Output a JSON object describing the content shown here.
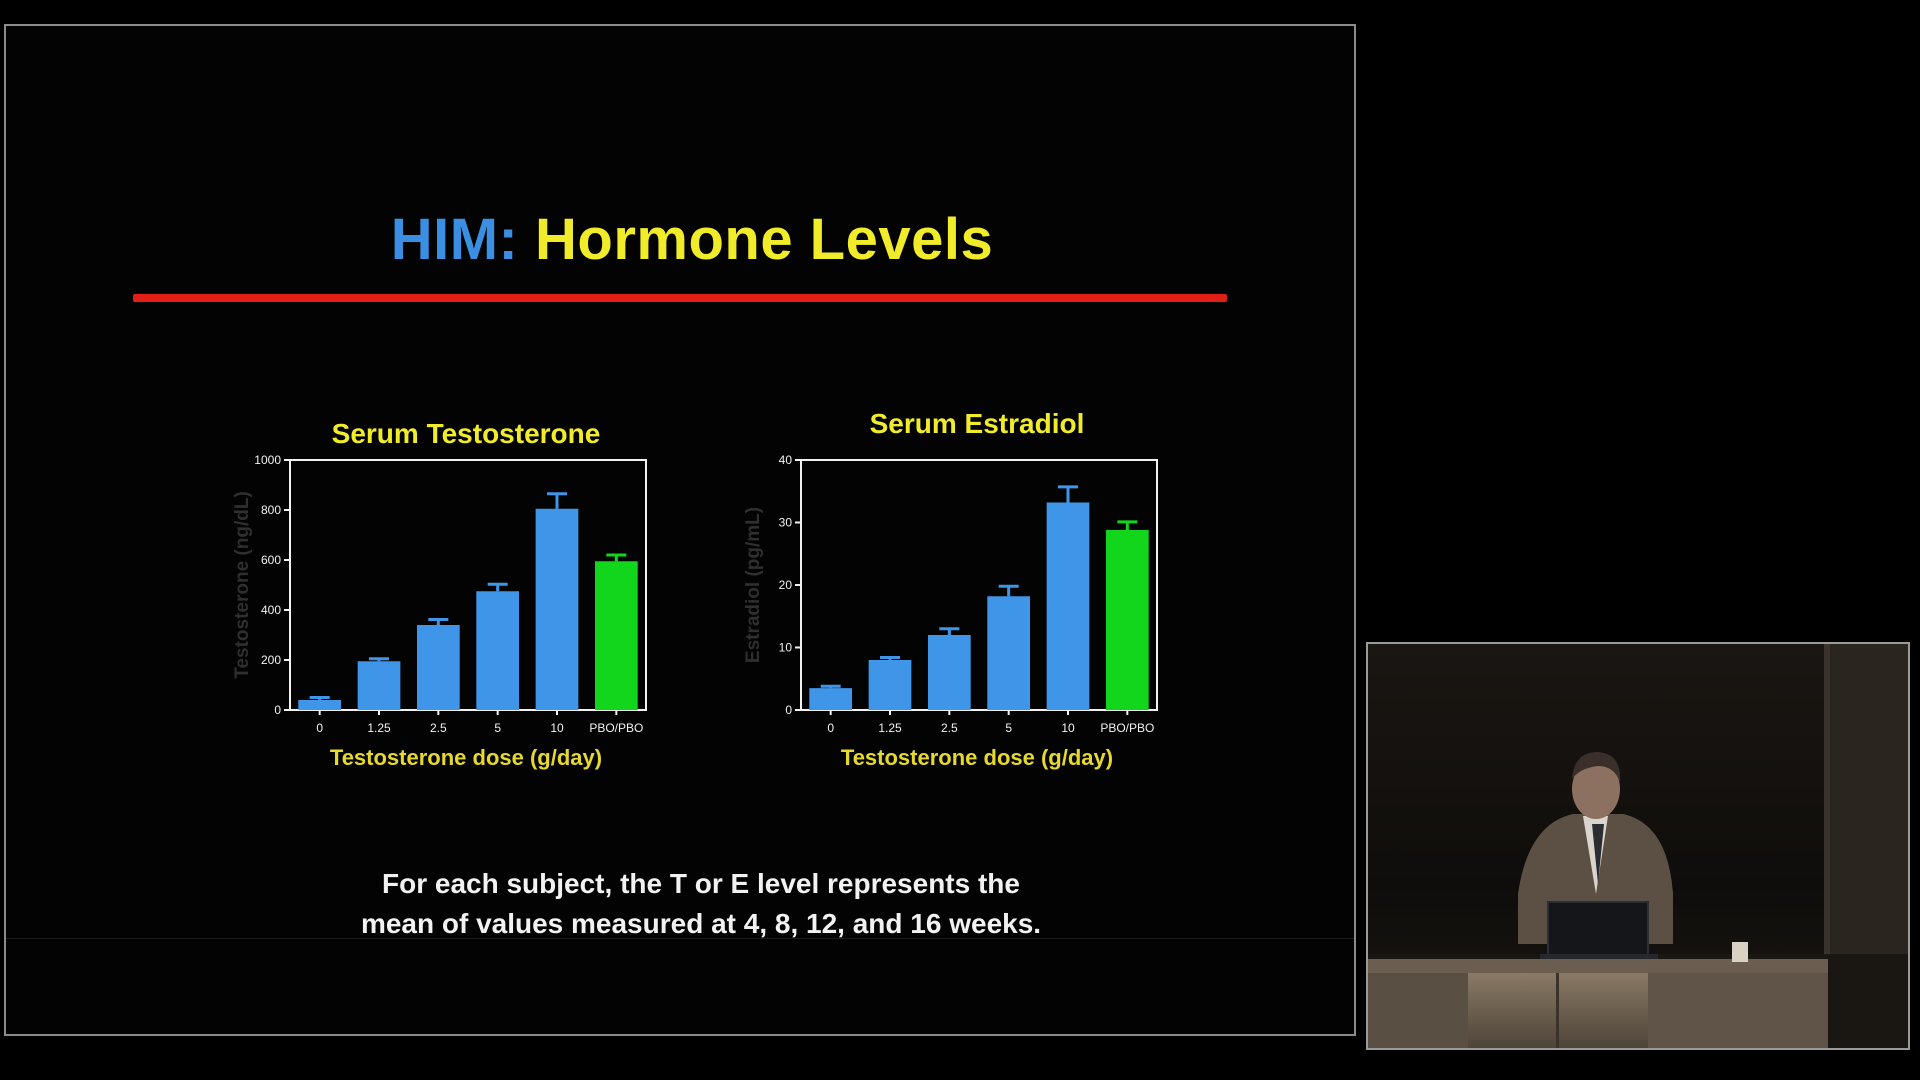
{
  "slide": {
    "title_prefix": "HIM:",
    "title_main": "Hormone Levels",
    "caption_line1": "For each subject, the T or E level represents the",
    "caption_line2": "mean of values measured at 4, 8, 12, and 16 weeks.",
    "colors": {
      "title_prefix": "#3b8fe3",
      "title_main": "#f1ec2a",
      "rule": "#e21f16",
      "bar_dose": "#3f95e8",
      "bar_placebo": "#12d61c"
    }
  },
  "chart_data": [
    {
      "type": "bar",
      "title": "Serum Testosterone",
      "xlabel": "Testosterone dose (g/day)",
      "ylabel": "Testosterone (ng/dL)",
      "categories": [
        "0",
        "1.25",
        "2.5",
        "5",
        "10",
        "PBO/PBO"
      ],
      "values": [
        40,
        195,
        340,
        475,
        805,
        595
      ],
      "errors": [
        10,
        10,
        22,
        28,
        60,
        25
      ],
      "colors": [
        "#3f95e8",
        "#3f95e8",
        "#3f95e8",
        "#3f95e8",
        "#3f95e8",
        "#12d61c"
      ],
      "ylim": [
        0,
        1000
      ],
      "yticks": [
        "0",
        "200",
        "400",
        "600",
        "800",
        "1000"
      ],
      "grid": false
    },
    {
      "type": "bar",
      "title": "Serum Estradiol",
      "xlabel": "Testosterone dose (g/day)",
      "ylabel": "Estradiol (pg/mL)",
      "categories": [
        "0",
        "1.25",
        "2.5",
        "5",
        "10",
        "PBO/PBO"
      ],
      "values": [
        3.5,
        8,
        12,
        18.2,
        33.2,
        28.8
      ],
      "errors": [
        0.3,
        0.4,
        1.0,
        1.6,
        2.5,
        1.3
      ],
      "colors": [
        "#3f95e8",
        "#3f95e8",
        "#3f95e8",
        "#3f95e8",
        "#3f95e8",
        "#12d61c"
      ],
      "ylim": [
        0,
        40
      ],
      "yticks": [
        "0",
        "10",
        "20",
        "30",
        "40"
      ],
      "grid": false
    }
  ]
}
